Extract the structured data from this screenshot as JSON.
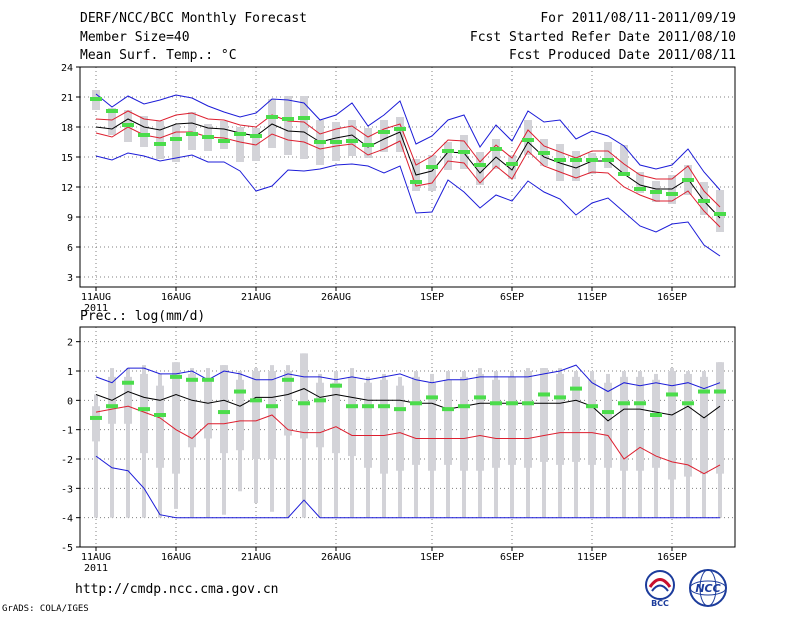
{
  "header": {
    "title": "DERF/NCC/BCC Monthly Forecast",
    "member_size": "Member Size=40",
    "period": "For 2011/08/11-2011/09/19",
    "started": "Fcst Started Refer Date 2011/08/10",
    "produced": "Fcst Produced Date 2011/08/11"
  },
  "footer": {
    "url": "http://cmdp.ncc.cma.gov.cn",
    "grads": "GrADS: COLA/IGES",
    "logo_bcc": "BCC",
    "logo_ncc": "NCC"
  },
  "colors": {
    "box": "#d3d3d8",
    "median": "#4bdc4b",
    "mean": "#000000",
    "spread": "#dd1f2f",
    "extreme": "#1c1cd8",
    "grid": "#808080"
  },
  "chart_data": [
    {
      "type": "box-line",
      "title": "Mean Surf. Temp.: °C",
      "xlabel": "",
      "ylabel": "",
      "ylim": [
        2,
        24
      ],
      "yticks": [
        3,
        6,
        9,
        12,
        15,
        18,
        21,
        24
      ],
      "xticks": [
        {
          "day": 0,
          "label": "11AUG",
          "sub": "2011"
        },
        {
          "day": 5,
          "label": "16AUG"
        },
        {
          "day": 10,
          "label": "21AUG"
        },
        {
          "day": 15,
          "label": "26AUG"
        },
        {
          "day": 21,
          "label": "1SEP"
        },
        {
          "day": 26,
          "label": "6SEP"
        },
        {
          "day": 31,
          "label": "11SEP"
        },
        {
          "day": 36,
          "label": "16SEP"
        }
      ],
      "days": 40,
      "box_low": [
        19.7,
        17.2,
        16.5,
        16.0,
        14.8,
        14.5,
        15.7,
        15.6,
        15.8,
        14.5,
        14.6,
        15.9,
        15.2,
        14.8,
        14.2,
        14.6,
        15.1,
        14.9,
        15.5,
        15.5,
        11.6,
        11.6,
        13.7,
        13.8,
        12.2,
        13.8,
        12.8,
        15.2,
        14.1,
        12.6,
        12.6,
        13.3,
        13.9,
        13.5,
        11.4,
        10.5,
        10.3,
        11.2,
        9.2,
        7.5
      ],
      "box_high": [
        21.7,
        19.9,
        19.7,
        19.1,
        18.6,
        18.2,
        19.5,
        18.3,
        18.6,
        18.0,
        17.9,
        20.8,
        21.1,
        21.1,
        18.7,
        18.5,
        18.7,
        17.9,
        18.7,
        19.0,
        14.8,
        15.2,
        16.5,
        17.2,
        15.5,
        16.8,
        15.2,
        18.7,
        16.8,
        16.3,
        15.6,
        15.4,
        16.5,
        16.2,
        13.5,
        12.6,
        13.2,
        14.2,
        12.5,
        11.7
      ],
      "median": [
        20.8,
        19.6,
        18.2,
        17.2,
        16.3,
        16.8,
        17.3,
        17.0,
        16.6,
        17.3,
        17.1,
        19.0,
        18.8,
        18.9,
        16.5,
        16.5,
        16.6,
        16.2,
        17.5,
        17.8,
        12.5,
        14.0,
        15.6,
        15.5,
        14.2,
        15.8,
        14.3,
        16.7,
        15.4,
        14.7,
        14.7,
        14.7,
        14.7,
        13.3,
        11.8,
        11.5,
        11.3,
        12.7,
        10.6,
        9.3
      ],
      "mean": [
        18.0,
        17.8,
        18.8,
        18.0,
        17.7,
        18.3,
        18.4,
        17.9,
        17.8,
        17.4,
        17.1,
        18.3,
        17.6,
        17.5,
        16.5,
        16.9,
        17.2,
        16.0,
        16.8,
        17.5,
        13.2,
        13.6,
        15.5,
        15.4,
        13.4,
        15.0,
        13.7,
        16.5,
        15.0,
        14.4,
        13.9,
        14.6,
        14.6,
        13.3,
        12.2,
        11.8,
        11.8,
        12.8,
        10.6,
        8.9
      ],
      "upper": [
        18.8,
        18.7,
        19.6,
        18.8,
        18.6,
        19.2,
        19.4,
        18.8,
        18.7,
        18.2,
        18.0,
        19.2,
        18.6,
        18.5,
        17.3,
        17.8,
        18.1,
        17.0,
        17.8,
        18.3,
        14.2,
        15.1,
        16.7,
        16.6,
        14.5,
        16.2,
        14.9,
        17.7,
        16.1,
        15.5,
        14.9,
        15.6,
        15.6,
        14.3,
        13.2,
        12.8,
        12.8,
        14.1,
        11.6,
        10.0
      ],
      "lower": [
        17.4,
        17.0,
        18.0,
        17.2,
        16.9,
        17.5,
        17.5,
        17.0,
        16.9,
        16.5,
        16.2,
        17.3,
        16.7,
        16.5,
        15.8,
        16.1,
        16.3,
        15.2,
        15.8,
        16.6,
        12.1,
        12.4,
        14.6,
        14.4,
        12.4,
        14.1,
        12.8,
        15.6,
        14.1,
        13.5,
        12.9,
        13.5,
        13.4,
        12.0,
        11.2,
        10.6,
        10.6,
        11.6,
        9.6,
        8.0
      ],
      "max": [
        21.3,
        20.0,
        21.1,
        20.3,
        20.7,
        21.2,
        20.9,
        20.1,
        19.5,
        19.0,
        19.4,
        20.8,
        20.7,
        20.4,
        18.7,
        19.2,
        20.4,
        18.1,
        19.2,
        20.6,
        16.3,
        17.1,
        18.7,
        19.2,
        16.0,
        18.2,
        16.6,
        19.6,
        18.5,
        18.7,
        16.8,
        17.6,
        17.1,
        16.1,
        14.2,
        13.8,
        14.2,
        15.8,
        13.5,
        11.7
      ],
      "min": [
        15.1,
        14.7,
        15.4,
        15.1,
        14.6,
        14.9,
        15.2,
        14.5,
        14.5,
        13.6,
        11.6,
        12.1,
        13.7,
        13.6,
        13.8,
        14.2,
        14.3,
        14.1,
        13.4,
        14.1,
        9.4,
        9.5,
        12.7,
        11.5,
        9.9,
        11.2,
        10.6,
        12.6,
        11.5,
        10.8,
        9.2,
        10.4,
        10.9,
        9.5,
        8.1,
        7.5,
        8.3,
        8.5,
        6.2,
        5.1
      ]
    },
    {
      "type": "box-line",
      "title": "Prec.: log(mm/d)",
      "xlabel": "",
      "ylabel": "",
      "ylim": [
        -5,
        2.5
      ],
      "yticks": [
        -5,
        -4,
        -3,
        -2,
        -1,
        0,
        1,
        2
      ],
      "xticks": [
        {
          "day": 0,
          "label": "11AUG",
          "sub": "2011"
        },
        {
          "day": 5,
          "label": "16AUG"
        },
        {
          "day": 10,
          "label": "21AUG"
        },
        {
          "day": 15,
          "label": "26AUG"
        },
        {
          "day": 21,
          "label": "1SEP"
        },
        {
          "day": 26,
          "label": "6SEP"
        },
        {
          "day": 31,
          "label": "11SEP"
        },
        {
          "day": 36,
          "label": "16SEP"
        }
      ],
      "days": 40,
      "box_low": [
        -1.4,
        -0.8,
        -0.8,
        -1.8,
        -2.3,
        -2.5,
        -1.6,
        -1.3,
        -1.8,
        -1.7,
        -2.0,
        -2.0,
        -1.2,
        -1.3,
        -1.6,
        -1.8,
        -1.9,
        -2.3,
        -2.5,
        -2.4,
        -2.2,
        -2.4,
        -2.2,
        -2.4,
        -2.4,
        -2.3,
        -2.2,
        -2.3,
        -2.1,
        -2.2,
        -2.1,
        -2.2,
        -2.3,
        -2.4,
        -2.4,
        -2.3,
        -2.7,
        -2.6,
        -2.5,
        -2.5
      ],
      "box_high": [
        -0.2,
        0.8,
        0.8,
        0.9,
        0.5,
        1.3,
        0.9,
        0.7,
        1.2,
        0.7,
        1.0,
        1.0,
        1.0,
        1.6,
        0.6,
        0.6,
        0.8,
        0.6,
        0.7,
        0.5,
        0.8,
        0.6,
        0.7,
        0.8,
        0.9,
        0.7,
        0.8,
        1.0,
        1.1,
        0.9,
        0.8,
        0.7,
        0.6,
        0.8,
        0.8,
        0.7,
        1.0,
        0.9,
        0.8,
        1.3
      ],
      "whisker_low": [
        -4,
        -4,
        -4,
        -4,
        -4,
        -3.7,
        -4,
        -4,
        -3.9,
        -3.1,
        -3.5,
        -3.8,
        -4,
        -4,
        -4,
        -4,
        -4,
        -4,
        -4,
        -4,
        -4,
        -4,
        -4,
        -4,
        -4,
        -4,
        -4,
        -4,
        -4,
        -4,
        -4,
        -4,
        -4,
        -4,
        -4,
        -4,
        -4,
        -4,
        -4,
        -4
      ],
      "whisker_high": [
        0.2,
        1.1,
        1.1,
        1.2,
        0.9,
        1.3,
        1.1,
        1.1,
        1.2,
        1.0,
        1.1,
        1.2,
        1.2,
        1.6,
        0.9,
        1.0,
        1.1,
        0.8,
        0.9,
        0.8,
        1.0,
        0.9,
        1.0,
        1.0,
        1.1,
        1.0,
        1.0,
        1.1,
        1.1,
        1.1,
        1.0,
        1.0,
        0.9,
        1.0,
        1.0,
        0.9,
        1.1,
        1.0,
        1.0,
        1.3
      ],
      "median": [
        -0.6,
        -0.2,
        0.6,
        -0.3,
        -0.5,
        0.8,
        0.7,
        0.7,
        -0.4,
        0.3,
        0.0,
        -0.2,
        0.7,
        -0.1,
        0.0,
        0.5,
        -0.2,
        -0.2,
        -0.2,
        -0.3,
        -0.1,
        0.1,
        -0.3,
        -0.2,
        0.1,
        -0.1,
        -0.1,
        -0.1,
        0.2,
        0.1,
        0.4,
        -0.2,
        -0.4,
        -0.1,
        -0.1,
        -0.5,
        0.2,
        -0.1,
        0.3,
        0.3
      ],
      "mean": [
        0.2,
        0.0,
        0.3,
        0.1,
        0.0,
        0.2,
        0.0,
        -0.1,
        0.0,
        -0.2,
        0.1,
        0.1,
        0.2,
        0.4,
        0.1,
        0.2,
        0.1,
        0.0,
        0.0,
        0.0,
        -0.1,
        -0.1,
        -0.3,
        -0.2,
        -0.1,
        -0.1,
        -0.1,
        -0.1,
        -0.1,
        -0.1,
        0.0,
        -0.2,
        -0.7,
        -0.3,
        -0.3,
        -0.4,
        -0.5,
        -0.2,
        -0.6,
        -0.2
      ],
      "upper": [
        null,
        null,
        null,
        null,
        null,
        null,
        null,
        null,
        null,
        null,
        null,
        null,
        null,
        null,
        null,
        null,
        null,
        null,
        null,
        null,
        null,
        null,
        null,
        null,
        null,
        null,
        null,
        null,
        null,
        null,
        null,
        null,
        null,
        null,
        null,
        null,
        null,
        null,
        null,
        null
      ],
      "lower": [
        -0.4,
        -0.3,
        -0.2,
        -0.4,
        -0.6,
        -1.0,
        -1.3,
        -0.8,
        -0.8,
        -0.7,
        -0.7,
        -0.5,
        -1.0,
        -1.1,
        -1.1,
        -0.9,
        -1.2,
        -1.2,
        -1.2,
        -1.1,
        -1.3,
        -1.3,
        -1.3,
        -1.3,
        -1.2,
        -1.3,
        -1.3,
        -1.3,
        -1.2,
        -1.1,
        -1.1,
        -1.1,
        -1.2,
        -2.0,
        -1.6,
        -1.9,
        -2.1,
        -2.2,
        -2.5,
        -2.2
      ],
      "max": [
        0.8,
        0.6,
        1.1,
        1.1,
        0.9,
        0.9,
        1.0,
        0.7,
        1.0,
        0.9,
        0.7,
        0.7,
        0.9,
        0.8,
        0.8,
        0.7,
        0.8,
        0.7,
        0.8,
        0.9,
        0.7,
        0.6,
        0.7,
        0.7,
        0.8,
        0.8,
        0.8,
        0.8,
        0.9,
        1.0,
        1.2,
        0.6,
        0.3,
        0.6,
        0.5,
        0.6,
        0.5,
        0.6,
        0.4,
        0.6
      ],
      "min": [
        -1.9,
        -2.3,
        -2.4,
        -3.0,
        -3.9,
        -4.0,
        -4.0,
        -4.0,
        -4.0,
        -4.0,
        -4.0,
        -4.0,
        -4.0,
        -3.4,
        -4.0,
        -4.0,
        -4.0,
        -4.0,
        -4.0,
        -4.0,
        -4.0,
        -4.0,
        -4.0,
        -4.0,
        -4.0,
        -4.0,
        -4.0,
        -4.0,
        -4.0,
        -4.0,
        -4.0,
        -4.0,
        -4.0,
        -4.0,
        -4.0,
        -4.0,
        -4.0,
        -4.0,
        -4.0,
        -4.0
      ]
    }
  ]
}
